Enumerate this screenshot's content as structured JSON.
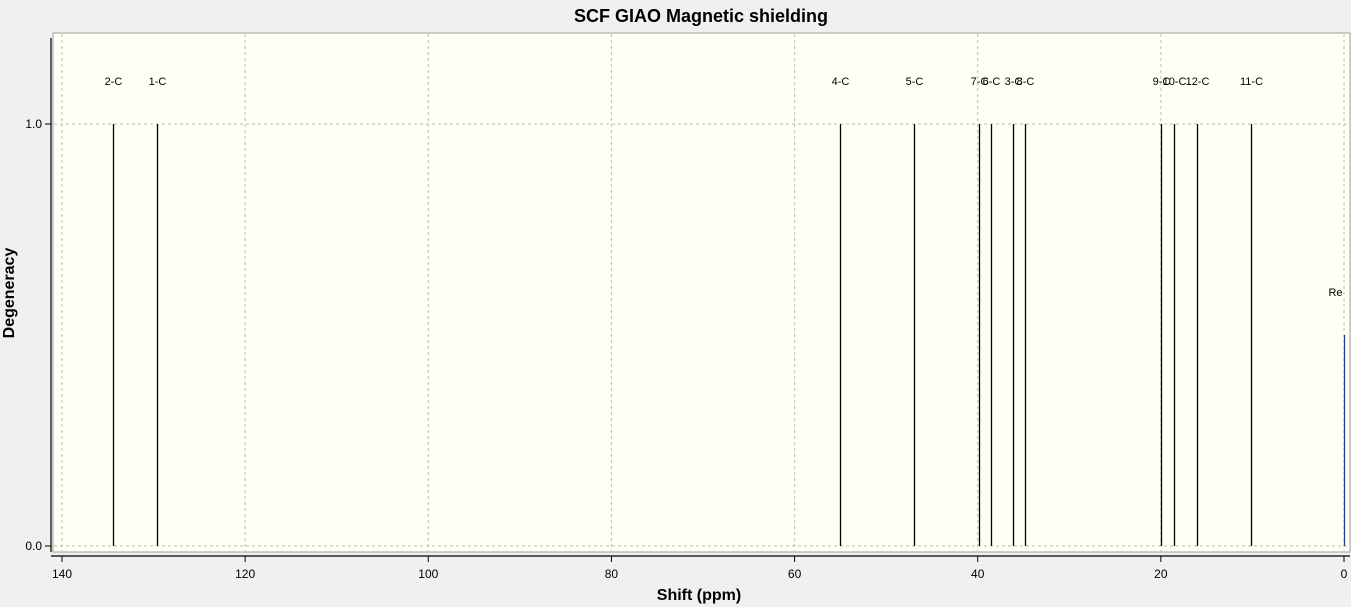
{
  "chart_data": {
    "type": "bar",
    "title": "SCF GIAO Magnetic shielding",
    "xlabel": "Shift (ppm)",
    "ylabel": "Degeneracy",
    "xlim": [
      140,
      0
    ],
    "ylim": [
      0,
      1.2
    ],
    "x_ticks": [
      "140",
      "120",
      "100",
      "80",
      "60",
      "40",
      "20",
      "0"
    ],
    "y_ticks": [
      "0.0",
      "1.0"
    ],
    "grid": true,
    "series": [
      {
        "points": [
          {
            "label": "2-C",
            "x": 134.4,
            "y": 1.0
          },
          {
            "label": "1-C",
            "x": 129.6,
            "y": 1.0
          },
          {
            "label": "4-C",
            "x": 55.0,
            "y": 1.0
          },
          {
            "label": "5-C",
            "x": 47.0,
            "y": 1.0
          },
          {
            "label": "7-C",
            "x": 39.9,
            "y": 1.0
          },
          {
            "label": "6-C",
            "x": 38.6,
            "y": 1.0
          },
          {
            "label": "3-C",
            "x": 36.2,
            "y": 1.0
          },
          {
            "label": "8-C",
            "x": 34.8,
            "y": 1.0
          },
          {
            "label": "9-C",
            "x": 20.0,
            "y": 1.0
          },
          {
            "label": "10-C",
            "x": 18.6,
            "y": 1.0
          },
          {
            "label": "12-C",
            "x": 16.1,
            "y": 1.0
          },
          {
            "label": "11-C",
            "x": 10.2,
            "y": 1.0
          },
          {
            "label": "Re",
            "x": 0.0,
            "y": 0.5,
            "color": "#1f3fa0"
          }
        ]
      }
    ],
    "colors": {
      "plot_background": "#fffff4",
      "line": "#000000",
      "grid": "#bcbcbc"
    }
  }
}
